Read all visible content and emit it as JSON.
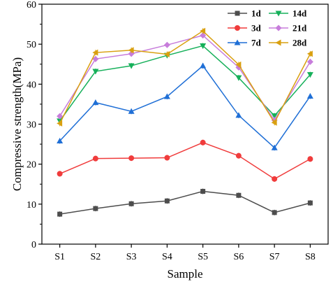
{
  "chart_data": {
    "type": "line",
    "xlabel": "Sample",
    "ylabel": "Compressive strength(MPa)",
    "categories": [
      "S1",
      "S2",
      "S3",
      "S4",
      "S5",
      "S6",
      "S7",
      "S8"
    ],
    "ylim": [
      0,
      60
    ],
    "yticks": [
      0,
      10,
      20,
      30,
      40,
      50,
      60
    ],
    "grid": false,
    "legend_position": "top-right",
    "series": [
      {
        "name": "1d",
        "color": "#4d4d4d",
        "marker": "square",
        "values": [
          7.5,
          8.9,
          10.1,
          10.8,
          13.2,
          12.2,
          7.9,
          10.3
        ]
      },
      {
        "name": "3d",
        "color": "#f03c3c",
        "marker": "circle",
        "values": [
          17.6,
          21.4,
          21.5,
          21.6,
          25.4,
          22.1,
          16.3,
          21.3
        ]
      },
      {
        "name": "7d",
        "color": "#1f6fd6",
        "marker": "triangle-up",
        "values": [
          25.8,
          35.4,
          33.2,
          36.9,
          44.6,
          32.2,
          24.1,
          37.0
        ]
      },
      {
        "name": "14d",
        "color": "#16b05a",
        "marker": "triangle-down",
        "values": [
          30.8,
          43.2,
          44.6,
          47.2,
          49.6,
          41.6,
          32.1,
          42.4
        ]
      },
      {
        "name": "21d",
        "color": "#c77ddb",
        "marker": "diamond",
        "values": [
          32.0,
          46.3,
          47.6,
          49.8,
          52.2,
          44.2,
          31.0,
          45.6
        ]
      },
      {
        "name": "28d",
        "color": "#d9a010",
        "marker": "triangle-left",
        "values": [
          30.2,
          47.9,
          48.5,
          47.5,
          53.3,
          44.9,
          30.4,
          47.6
        ]
      }
    ]
  }
}
